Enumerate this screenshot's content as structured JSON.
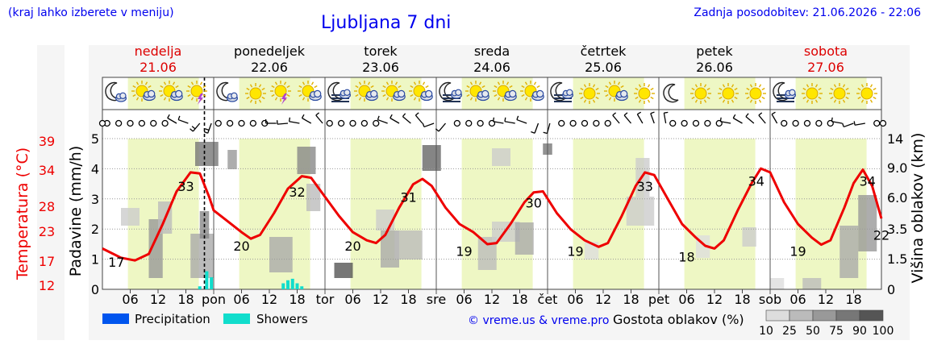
{
  "header": {
    "region_hint": "(kraj lahko izberete v meniju)",
    "title": "Ljubljana 7 dni",
    "updated": "Zadnja posodobitev: 21.06.2026 - 22:06"
  },
  "days": [
    {
      "name": "nedelja",
      "date": "21.06",
      "weekend": true
    },
    {
      "name": "ponedeljek",
      "date": "22.06",
      "weekend": false
    },
    {
      "name": "torek",
      "date": "23.06",
      "weekend": false
    },
    {
      "name": "sreda",
      "date": "24.06",
      "weekend": false
    },
    {
      "name": "četrtek",
      "date": "25.06",
      "weekend": false
    },
    {
      "name": "petek",
      "date": "26.06",
      "weekend": false
    },
    {
      "name": "sobota",
      "date": "27.06",
      "weekend": true
    }
  ],
  "day_abbr": [
    "pon",
    "tor",
    "sre",
    "čet",
    "pet",
    "sob"
  ],
  "hour_ticks": [
    "06",
    "12",
    "18"
  ],
  "weather_icons": [
    [
      "moon-cloud-icon",
      "sun-cloud-icon",
      "sun-cloud-icon",
      "sun-thunder-icon"
    ],
    [
      "moon-cloud-icon",
      "sun-icon",
      "sun-thunder-icon",
      "sun-cloud-icon"
    ],
    [
      "moon-fog-icon",
      "sun-cloud-icon",
      "sun-cloud-icon",
      "sun-cloud-icon"
    ],
    [
      "moon-fog-icon",
      "sun-cloud-icon",
      "sun-cloud-icon",
      "sun-cloud-icon"
    ],
    [
      "moon-fog-icon",
      "sun-icon",
      "sun-cloud-icon",
      "sun-icon"
    ],
    [
      "moon-icon",
      "sun-icon",
      "sun-icon",
      "sun-icon"
    ],
    [
      "moon-fog-icon",
      "sun-icon",
      "sun-icon",
      "sun-icon"
    ]
  ],
  "labels": {
    "temp_axis": "Temperatura (°C)",
    "precip_axis": "Padavine (mm/h)",
    "cloud_height_axis": "Višina oblakov (km)",
    "legend_precip": "Precipitation",
    "legend_showers": "Showers",
    "copyright": "© vreme.us & vreme.pro",
    "cloud_density": "Gostota oblakov (%)"
  },
  "colors": {
    "temperature_line": "#ee0000",
    "precipitation": "#0055ee",
    "showers": "#11ddcc",
    "daylight": "#eef7c4",
    "title": "#0000ee",
    "weekend_day": "#dd0000"
  },
  "chart_data": {
    "type": "line",
    "hours_total": 168,
    "temp_axis_ticks": [
      "12",
      "17",
      "23",
      "28",
      "34",
      "39"
    ],
    "precip_axis_ticks": [
      "0",
      "1",
      "2",
      "3",
      "4",
      "5"
    ],
    "cloud_height_ticks": [
      "0",
      "1.5",
      "3.5",
      "6.0",
      "9.0",
      "14"
    ],
    "cloud_density_ticks": [
      "10",
      "25",
      "50",
      "75",
      "90",
      "100"
    ],
    "now_hour": 22,
    "temperature_points": [
      {
        "h": 0,
        "t": 19.5
      },
      {
        "h": 4,
        "t": 17.8
      },
      {
        "h": 7,
        "t": 17.3
      },
      {
        "h": 10,
        "t": 18.5
      },
      {
        "h": 13,
        "t": 24
      },
      {
        "h": 16,
        "t": 30
      },
      {
        "h": 19,
        "t": 33.5
      },
      {
        "h": 21,
        "t": 33.3
      },
      {
        "h": 23,
        "t": 29
      },
      {
        "h": 24,
        "t": 26.5
      },
      {
        "h": 27,
        "t": 24.5
      },
      {
        "h": 30,
        "t": 22.5
      },
      {
        "h": 32,
        "t": 21.3
      },
      {
        "h": 34,
        "t": 22
      },
      {
        "h": 37,
        "t": 26
      },
      {
        "h": 40,
        "t": 30.5
      },
      {
        "h": 43,
        "t": 32.8
      },
      {
        "h": 45,
        "t": 32.5
      },
      {
        "h": 48,
        "t": 29
      },
      {
        "h": 51,
        "t": 25.5
      },
      {
        "h": 54,
        "t": 22.5
      },
      {
        "h": 57,
        "t": 21
      },
      {
        "h": 59,
        "t": 20.5
      },
      {
        "h": 61,
        "t": 22
      },
      {
        "h": 64,
        "t": 27
      },
      {
        "h": 67,
        "t": 31.3
      },
      {
        "h": 69,
        "t": 32.3
      },
      {
        "h": 71,
        "t": 31
      },
      {
        "h": 74,
        "t": 27
      },
      {
        "h": 77,
        "t": 24
      },
      {
        "h": 80,
        "t": 22.5
      },
      {
        "h": 83,
        "t": 20.3
      },
      {
        "h": 85,
        "t": 20.5
      },
      {
        "h": 88,
        "t": 24
      },
      {
        "h": 91,
        "t": 28
      },
      {
        "h": 93,
        "t": 29.8
      },
      {
        "h": 95,
        "t": 30
      },
      {
        "h": 98,
        "t": 26
      },
      {
        "h": 101,
        "t": 23
      },
      {
        "h": 104,
        "t": 21
      },
      {
        "h": 107,
        "t": 19.8
      },
      {
        "h": 109,
        "t": 20.5
      },
      {
        "h": 112,
        "t": 25.5
      },
      {
        "h": 115,
        "t": 31
      },
      {
        "h": 117,
        "t": 33.5
      },
      {
        "h": 119,
        "t": 33
      },
      {
        "h": 122,
        "t": 28.5
      },
      {
        "h": 125,
        "t": 24
      },
      {
        "h": 128,
        "t": 21.5
      },
      {
        "h": 130,
        "t": 20
      },
      {
        "h": 132,
        "t": 19.5
      },
      {
        "h": 134,
        "t": 21
      },
      {
        "h": 137,
        "t": 26.5
      },
      {
        "h": 140,
        "t": 31.5
      },
      {
        "h": 142,
        "t": 34.2
      },
      {
        "h": 144,
        "t": 33.5
      },
      {
        "h": 147,
        "t": 28
      },
      {
        "h": 150,
        "t": 24
      },
      {
        "h": 153,
        "t": 21.5
      },
      {
        "h": 155,
        "t": 20.2
      },
      {
        "h": 157,
        "t": 21
      },
      {
        "h": 160,
        "t": 27
      },
      {
        "h": 162,
        "t": 31.5
      },
      {
        "h": 164,
        "t": 34
      },
      {
        "h": 166,
        "t": 31
      },
      {
        "h": 168,
        "t": 25
      }
    ],
    "temperature_labels": [
      {
        "h": 3,
        "t": 17,
        "text": "17"
      },
      {
        "h": 18,
        "t": 33,
        "text": "33"
      },
      {
        "h": 30,
        "t": 20,
        "text": "20"
      },
      {
        "h": 42,
        "t": 32,
        "text": "32"
      },
      {
        "h": 54,
        "t": 20,
        "text": "20"
      },
      {
        "h": 66,
        "t": 31,
        "text": "31"
      },
      {
        "h": 78,
        "t": 19,
        "text": "19"
      },
      {
        "h": 93,
        "t": 30,
        "text": "30"
      },
      {
        "h": 102,
        "t": 19,
        "text": "19"
      },
      {
        "h": 117,
        "t": 33,
        "text": "33"
      },
      {
        "h": 126,
        "t": 18,
        "text": "18"
      },
      {
        "h": 141,
        "t": 34,
        "text": "34"
      },
      {
        "h": 150,
        "t": 19,
        "text": "19"
      },
      {
        "h": 165,
        "t": 34,
        "text": "34"
      },
      {
        "h": 168,
        "t": 22,
        "text": "22"
      }
    ],
    "showers": [
      {
        "h": 21,
        "mm": 0.1
      },
      {
        "h": 22.5,
        "mm": 0.6
      },
      {
        "h": 23.5,
        "mm": 0.4
      },
      {
        "h": 39,
        "mm": 0.2
      },
      {
        "h": 40,
        "mm": 0.3
      },
      {
        "h": 41,
        "mm": 0.35
      },
      {
        "h": 42,
        "mm": 0.2
      },
      {
        "h": 43,
        "mm": 0.1
      }
    ],
    "wind_barbs": [
      {
        "h": 1,
        "calm": true
      },
      {
        "h": 3.5,
        "calm": true
      },
      {
        "h": 6,
        "calm": true
      },
      {
        "h": 8.5,
        "calm": true
      },
      {
        "h": 11,
        "calm": true
      },
      {
        "h": 13.5,
        "calm": true
      },
      {
        "h": 16,
        "dir": 300,
        "kt": 5
      },
      {
        "h": 18.5,
        "dir": 290,
        "kt": 5
      },
      {
        "h": 21,
        "dir": 220,
        "kt": 10
      },
      {
        "h": 23.5,
        "dir": 200,
        "kt": 10
      },
      {
        "h": 25,
        "calm": true
      },
      {
        "h": 27.5,
        "calm": true
      },
      {
        "h": 30,
        "calm": true
      },
      {
        "h": 32.5,
        "calm": true
      },
      {
        "h": 35,
        "calm": true
      },
      {
        "h": 37.5,
        "dir": 270,
        "kt": 5
      },
      {
        "h": 40,
        "dir": 265,
        "kt": 5
      },
      {
        "h": 42.5,
        "dir": 280,
        "kt": 5
      },
      {
        "h": 45,
        "dir": 300,
        "kt": 5
      },
      {
        "h": 47.5,
        "dir": 320,
        "kt": 5
      },
      {
        "h": 49,
        "calm": true
      },
      {
        "h": 51.5,
        "calm": true
      },
      {
        "h": 54,
        "calm": true
      },
      {
        "h": 56.5,
        "calm": true
      },
      {
        "h": 59,
        "calm": true
      },
      {
        "h": 61.5,
        "dir": 290,
        "kt": 5
      },
      {
        "h": 64,
        "dir": 300,
        "kt": 5
      },
      {
        "h": 66.5,
        "dir": 310,
        "kt": 5
      },
      {
        "h": 69,
        "dir": 320,
        "kt": 5
      },
      {
        "h": 71.5,
        "dir": 250,
        "kt": 5
      },
      {
        "h": 74,
        "dir": 220,
        "kt": 5
      },
      {
        "h": 76.5,
        "calm": true
      },
      {
        "h": 79,
        "calm": true
      },
      {
        "h": 81.5,
        "calm": true
      },
      {
        "h": 84,
        "calm": true
      },
      {
        "h": 86.5,
        "dir": 280,
        "kt": 5
      },
      {
        "h": 89,
        "dir": 280,
        "kt": 5
      },
      {
        "h": 91.5,
        "dir": 290,
        "kt": 5
      },
      {
        "h": 94,
        "dir": 200,
        "kt": 5
      },
      {
        "h": 96.5,
        "dir": 195,
        "kt": 5
      },
      {
        "h": 99,
        "calm": true
      },
      {
        "h": 101.5,
        "calm": true
      },
      {
        "h": 104,
        "calm": true
      },
      {
        "h": 106.5,
        "calm": true
      },
      {
        "h": 109,
        "calm": true
      },
      {
        "h": 111.5,
        "dir": 320,
        "kt": 5
      },
      {
        "h": 114,
        "dir": 320,
        "kt": 5
      },
      {
        "h": 116.5,
        "dir": 330,
        "kt": 5
      },
      {
        "h": 119,
        "dir": 340,
        "kt": 5
      },
      {
        "h": 121.5,
        "dir": 350,
        "kt": 5
      },
      {
        "h": 123,
        "calm": true
      },
      {
        "h": 125.5,
        "calm": true
      },
      {
        "h": 128,
        "calm": true
      },
      {
        "h": 130.5,
        "calm": true
      },
      {
        "h": 133,
        "calm": true
      },
      {
        "h": 135.5,
        "dir": 280,
        "kt": 5
      },
      {
        "h": 138,
        "dir": 300,
        "kt": 5
      },
      {
        "h": 140.5,
        "dir": 310,
        "kt": 5
      },
      {
        "h": 143,
        "dir": 320,
        "kt": 5
      },
      {
        "h": 145.5,
        "dir": 330,
        "kt": 5
      },
      {
        "h": 147,
        "calm": true
      },
      {
        "h": 149.5,
        "calm": true
      },
      {
        "h": 152,
        "calm": true
      },
      {
        "h": 154.5,
        "calm": true
      },
      {
        "h": 157,
        "calm": true
      },
      {
        "h": 159.5,
        "dir": 280,
        "kt": 5
      },
      {
        "h": 162,
        "dir": 250,
        "kt": 5
      },
      {
        "h": 164.5,
        "dir": 260,
        "kt": 5
      },
      {
        "h": 167,
        "calm": true
      }
    ]
  }
}
